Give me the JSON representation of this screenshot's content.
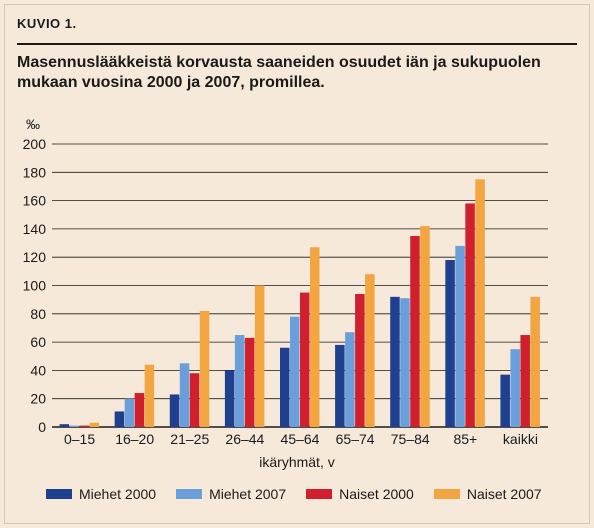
{
  "header": {
    "figure_label": "KUVIO 1.",
    "title": "Masennuslääkkeistä korvausta saaneiden osuudet iän ja sukupuolen mukaan vuosina 2000 ja 2007, promillea."
  },
  "chart_data": {
    "type": "bar",
    "title": "Masennuslääkkeistä korvausta saaneiden osuudet iän ja sukupuolen mukaan vuosina 2000 ja 2007, promillea.",
    "unit_label": "‰",
    "xlabel": "ikäryhmät, v",
    "ylabel": "‰",
    "ylim": [
      0,
      200
    ],
    "yticks": [
      0,
      20,
      40,
      60,
      80,
      100,
      120,
      140,
      160,
      180,
      200
    ],
    "grid": true,
    "legend_position": "bottom",
    "categories": [
      "0–15",
      "16–20",
      "21–25",
      "26–44",
      "45–64",
      "65–74",
      "75–84",
      "85+",
      "kaikki"
    ],
    "series": [
      {
        "name": "Miehet 2000",
        "color": "#1f3f8f",
        "values": [
          2,
          11,
          23,
          40,
          56,
          58,
          92,
          118,
          37
        ]
      },
      {
        "name": "Miehet 2007",
        "color": "#6a9fdc",
        "values": [
          1,
          20,
          45,
          65,
          78,
          67,
          91,
          128,
          55
        ]
      },
      {
        "name": "Naiset 2000",
        "color": "#d0202e",
        "values": [
          1,
          24,
          38,
          63,
          95,
          94,
          135,
          158,
          65
        ]
      },
      {
        "name": "Naiset 2007",
        "color": "#f2a540",
        "values": [
          3,
          44,
          82,
          100,
          127,
          108,
          142,
          175,
          92
        ]
      }
    ]
  }
}
